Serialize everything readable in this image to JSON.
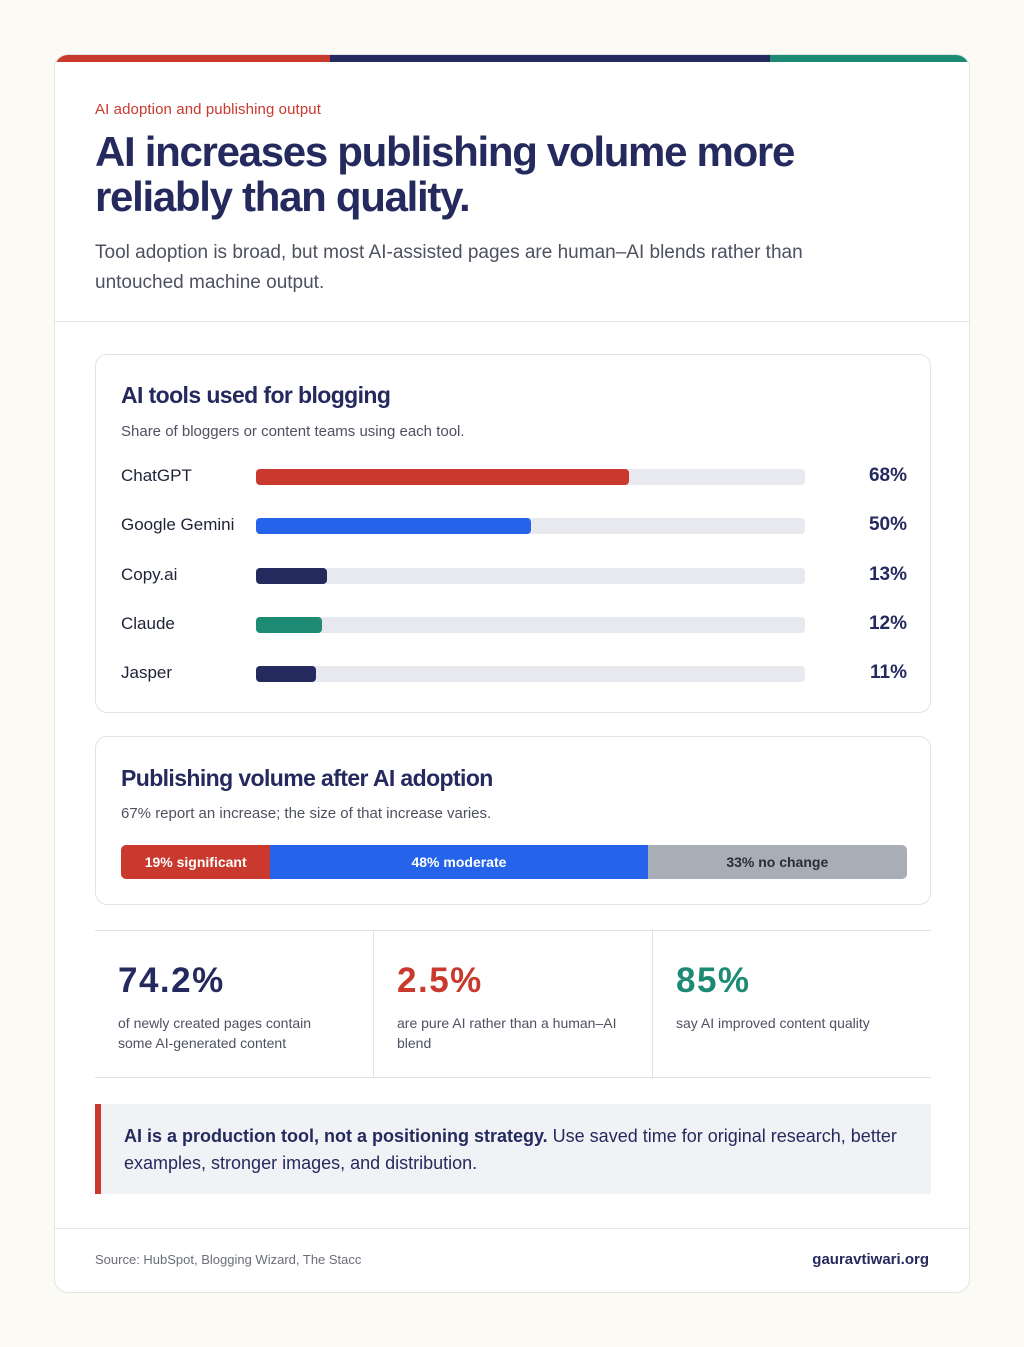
{
  "header": {
    "kicker": "AI adoption and publishing output",
    "headline": "AI increases publishing volume more reliably than quality.",
    "subhead": "Tool adoption is broad, but most AI-assisted pages are human–AI blends rather than untouched machine output."
  },
  "colors": {
    "red": "#c9392e",
    "navy": "#252a5e",
    "blue": "#2563eb",
    "teal": "#1d8a73",
    "gray": "#a8adb6"
  },
  "chart_data": [
    {
      "type": "bar",
      "orientation": "horizontal",
      "title": "AI tools used for blogging",
      "subtitle": "Share of bloggers or content teams using each tool.",
      "categories": [
        "ChatGPT",
        "Google Gemini",
        "Copy.ai",
        "Claude",
        "Jasper"
      ],
      "values": [
        68,
        50,
        13,
        12,
        11
      ],
      "value_labels": [
        "68%",
        "50%",
        "13%",
        "12%",
        "11%"
      ],
      "bar_colors": [
        "#c9392e",
        "#2563eb",
        "#252a5e",
        "#1d8a73",
        "#252a5e"
      ],
      "xlim": [
        0,
        100
      ]
    },
    {
      "type": "bar",
      "orientation": "stacked-horizontal",
      "title": "Publishing volume after AI adoption",
      "subtitle": "67% report an increase; the size of that increase varies.",
      "segments": [
        {
          "label": "19% significant",
          "value": 19,
          "color": "#c9392e",
          "text_color": "#ffffff"
        },
        {
          "label": "48% moderate",
          "value": 48,
          "color": "#2563eb",
          "text_color": "#ffffff"
        },
        {
          "label": "33% no change",
          "value": 33,
          "color": "#a8adb6",
          "text_color": "#2a2d3a"
        }
      ]
    }
  ],
  "stats": [
    {
      "value": "74.2%",
      "description": "of newly created pages contain some AI-generated content",
      "color": "#252a5e"
    },
    {
      "value": "2.5%",
      "description": "are pure AI rather than a human–AI blend",
      "color": "#c9392e"
    },
    {
      "value": "85%",
      "description": "say AI improved content quality",
      "color": "#1d8a73"
    }
  ],
  "callout": {
    "bold": "AI is a production tool, not a positioning strategy.",
    "text": " Use saved time for original research, better examples, stronger images, and distribution."
  },
  "footer": {
    "source": "Source: HubSpot, Blogging Wizard, The Stacc",
    "site": "gauravtiwari.org"
  }
}
